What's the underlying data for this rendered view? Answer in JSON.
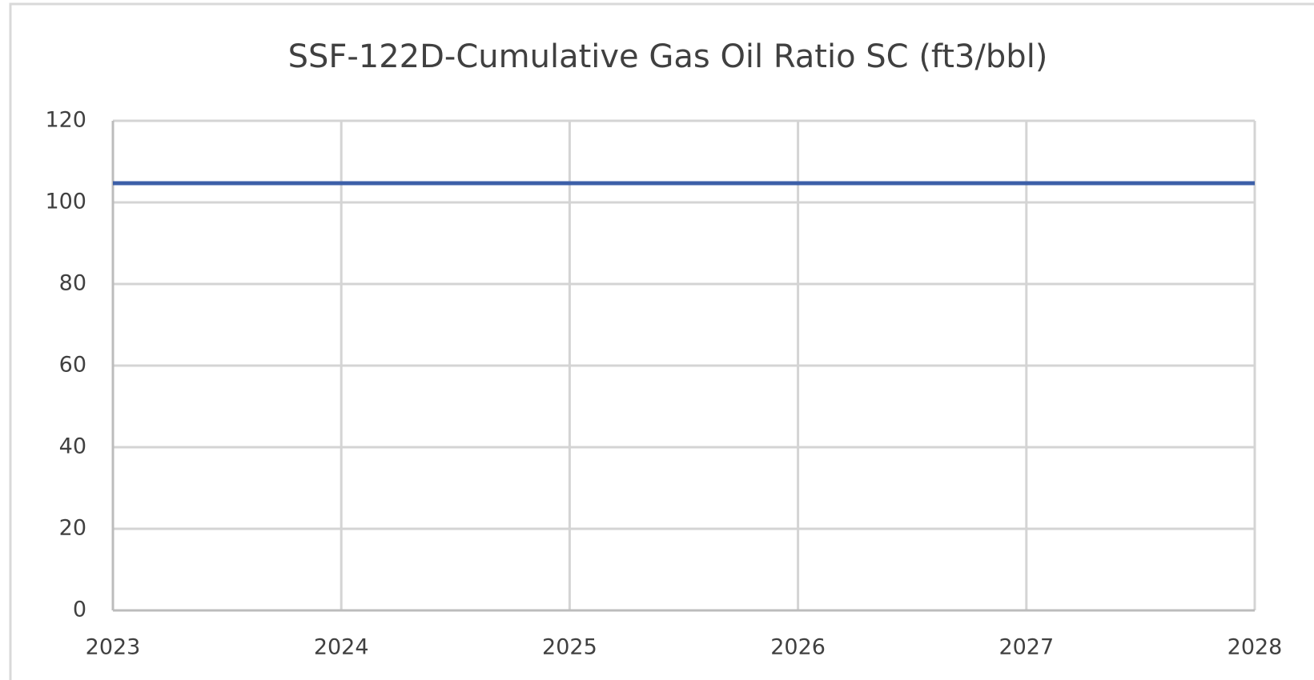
{
  "chart_data": {
    "type": "line",
    "title": "SSF-122D-Cumulative Gas Oil Ratio SC (ft3/bbl)",
    "x": [
      2023,
      2028
    ],
    "series": [
      {
        "name": "Cumulative Gas Oil Ratio SC",
        "color": "#3c5fa8",
        "values": [
          104.7,
          104.7
        ]
      }
    ],
    "xlim": [
      2023,
      2028
    ],
    "xticks": [
      2023,
      2024,
      2025,
      2026,
      2027,
      2028
    ],
    "ylim": [
      0,
      120
    ],
    "yticks": [
      0,
      20,
      40,
      60,
      80,
      100,
      120
    ],
    "grid": true,
    "legend": false
  }
}
